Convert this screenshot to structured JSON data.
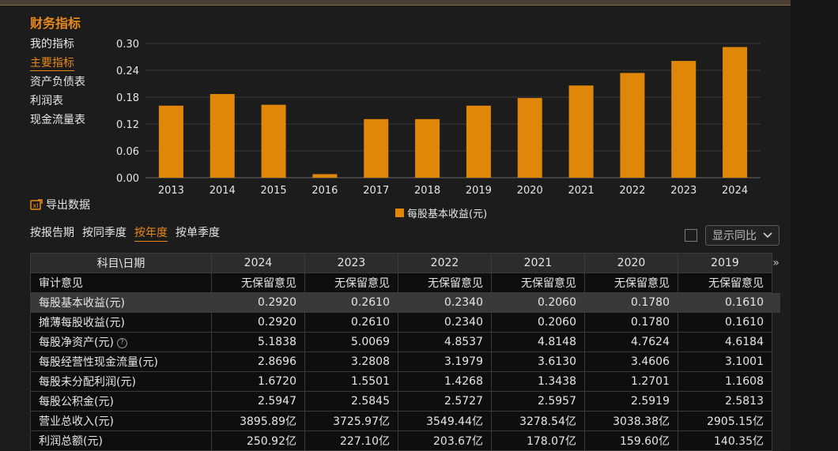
{
  "section_title": "财务指标",
  "nav": [
    {
      "label": "我的指标"
    },
    {
      "label": "主要指标"
    },
    {
      "label": "资产负债表"
    },
    {
      "label": "利润表"
    },
    {
      "label": "现金流量表"
    }
  ],
  "export_label": "导出数据",
  "period_tabs": [
    {
      "label": "按报告期"
    },
    {
      "label": "按同季度"
    },
    {
      "label": "按年度"
    },
    {
      "label": "按单季度"
    }
  ],
  "yoy_label": "显示同比",
  "chart_data": {
    "type": "bar",
    "categories": [
      "2013",
      "2014",
      "2015",
      "2016",
      "2017",
      "2018",
      "2019",
      "2020",
      "2021",
      "2022",
      "2023",
      "2024"
    ],
    "series": [
      {
        "name": "每股基本收益(元)",
        "values": [
          0.161,
          0.187,
          0.163,
          0.008,
          0.131,
          0.131,
          0.161,
          0.178,
          0.206,
          0.234,
          0.261,
          0.292
        ]
      }
    ],
    "yticks": [
      "0.00",
      "0.06",
      "0.12",
      "0.18",
      "0.24",
      "0.30"
    ],
    "ylim": [
      0,
      0.3
    ],
    "grid": true,
    "legend": "bottom",
    "color": "#e0870a"
  },
  "table": {
    "header_label": "科目\\日期",
    "years": [
      "2024",
      "2023",
      "2022",
      "2021",
      "2020",
      "2019"
    ],
    "more_icon": "»",
    "rows": [
      {
        "label": "审计意见",
        "values": [
          "无保留意见",
          "无保留意见",
          "无保留意见",
          "无保留意见",
          "无保留意见",
          "无保留意见"
        ]
      },
      {
        "label": "每股基本收益(元)",
        "values": [
          "0.2920",
          "0.2610",
          "0.2340",
          "0.2060",
          "0.1780",
          "0.1610"
        ]
      },
      {
        "label": "摊薄每股收益(元)",
        "values": [
          "0.2920",
          "0.2610",
          "0.2340",
          "0.2060",
          "0.1780",
          "0.1610"
        ]
      },
      {
        "label": "每股净资产(元)",
        "values": [
          "5.1838",
          "5.0069",
          "4.8537",
          "4.8148",
          "4.7624",
          "4.6184"
        ]
      },
      {
        "label": "每股经营性现金流量(元)",
        "values": [
          "2.8696",
          "3.2808",
          "3.1979",
          "3.6130",
          "3.4606",
          "3.1001"
        ]
      },
      {
        "label": "每股未分配利润(元)",
        "values": [
          "1.6720",
          "1.5501",
          "1.4268",
          "1.3438",
          "1.2701",
          "1.1608"
        ]
      },
      {
        "label": "每股公积金(元)",
        "values": [
          "2.5947",
          "2.5845",
          "2.5727",
          "2.5957",
          "2.5919",
          "2.5813"
        ]
      },
      {
        "label": "营业总收入(元)",
        "values": [
          "3895.89亿",
          "3725.97亿",
          "3549.44亿",
          "3278.54亿",
          "3038.38亿",
          "2905.15亿"
        ]
      },
      {
        "label": "利润总额(元)",
        "values": [
          "250.92亿",
          "227.10亿",
          "203.67亿",
          "178.07亿",
          "159.60亿",
          "140.35亿"
        ]
      }
    ]
  }
}
